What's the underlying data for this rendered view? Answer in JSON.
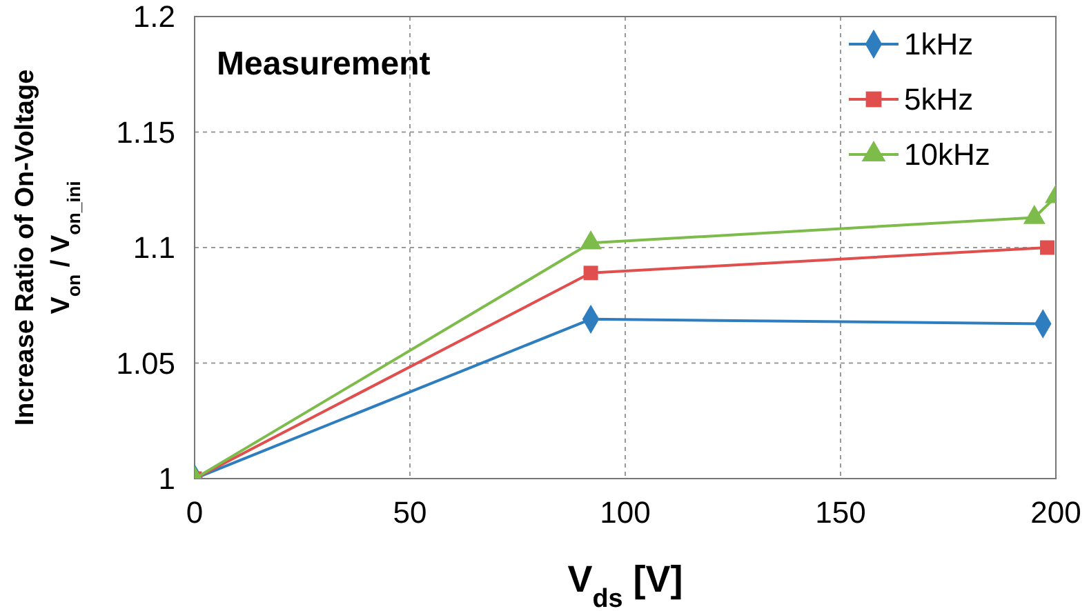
{
  "chart_data": {
    "type": "line",
    "xlabel": "V$_{ds}$ [V]",
    "ylabel": "Increase Ratio of On-Voltage\nV$_{on}$ / V$_{on_ini}$",
    "annotations": [
      "Measurement"
    ],
    "xlim": [
      0,
      200
    ],
    "xticks": [
      0,
      50,
      100,
      150,
      200
    ],
    "ylim": [
      1,
      1.2
    ],
    "yticks": [
      1,
      {
        "value": 1.05,
        "label": "1.05"
      },
      {
        "value": 1.1,
        "label": "1.1"
      },
      {
        "value": 1.15,
        "label": "1.15"
      },
      {
        "value": 1.2,
        "label": "1.2"
      }
    ],
    "grid": true,
    "legend": "top right",
    "line_style": "solid",
    "series": [
      {
        "name": "1kHz",
        "color": "#2e7ebf",
        "marker": "diamond",
        "x": [
          0,
          92,
          197
        ],
        "values": [
          1,
          1.069,
          1.067
        ]
      },
      {
        "name": "5kHz",
        "color": "#e04e4e",
        "marker": "square",
        "x": [
          0,
          92,
          198
        ],
        "values": [
          1,
          1.089,
          1.1
        ]
      },
      {
        "name": "10kHz",
        "color": "#7dbb4a",
        "marker": "triangle",
        "x": [
          0,
          92,
          195,
          200
        ],
        "values": [
          1,
          1.102,
          1.113,
          1.122
        ]
      }
    ]
  }
}
